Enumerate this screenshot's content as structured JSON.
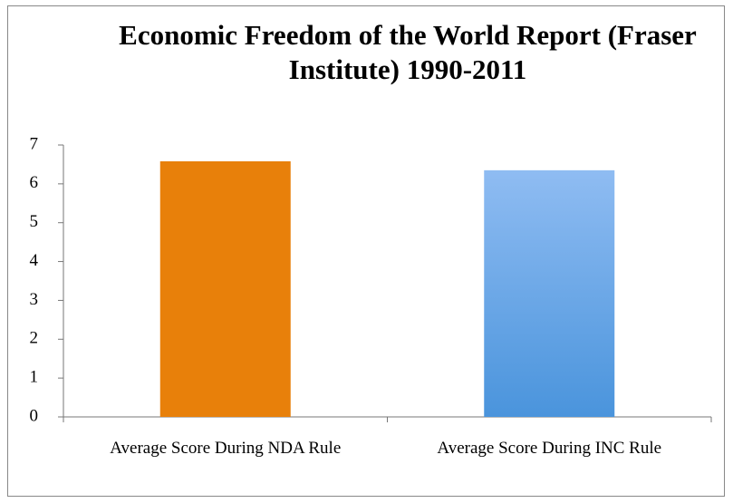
{
  "chart_data": {
    "type": "bar",
    "title": "Economic Freedom of the World Report (Fraser Institute) 1990-2011",
    "categories": [
      "Average Score During NDA Rule",
      "Average Score During INC Rule"
    ],
    "values": [
      6.58,
      6.35
    ],
    "colors": [
      "#e8800a",
      "#8fbcf2"
    ],
    "ylim": [
      0,
      7
    ],
    "yticks": [
      0,
      1,
      2,
      3,
      4,
      5,
      6,
      7
    ],
    "grid": false
  }
}
